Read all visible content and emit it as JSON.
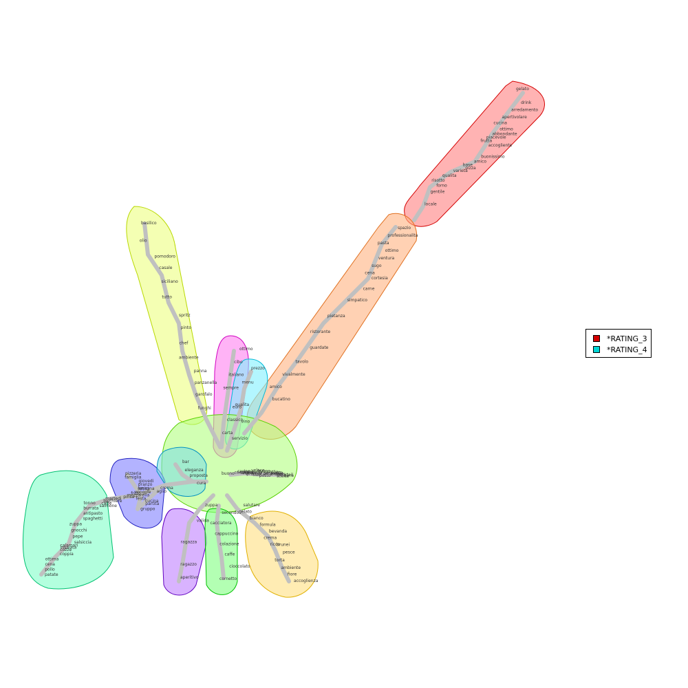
{
  "legend": {
    "items": [
      {
        "label": "*RATING_3",
        "color": "#d40000"
      },
      {
        "label": "*RATING_4",
        "color": "#00d6d6"
      }
    ]
  },
  "hub": {
    "label": "buono"
  },
  "edge_color": "#c0c0c0",
  "clusters": [
    {
      "name": "red",
      "fill": "#ff8080",
      "stroke": "#d40000",
      "words": [
        "gelato",
        "drink",
        "arredamento",
        "apertivolare",
        "cucina",
        "ottimo",
        "abbondante",
        "piacevole",
        "frutta",
        "accogliente",
        "buonissimo",
        "amico",
        "base",
        "pizza",
        "varieta",
        "qualita",
        "risotto",
        "forno",
        "gentile",
        "locale"
      ]
    },
    {
      "name": "orange",
      "fill": "#ffb380",
      "stroke": "#e07020",
      "words": [
        "spazio",
        "professionalita",
        "pasta",
        "ottimo",
        "ventura",
        "sugo",
        "cena",
        "cortesia",
        "carne",
        "simpatico",
        "pietanza",
        "ristorante",
        "guardate",
        "tavolo",
        "vivalmente",
        "amico",
        "bucatino"
      ]
    },
    {
      "name": "yellow",
      "fill": "#ecff80",
      "stroke": "#b8d800",
      "words": [
        "basilico",
        "olio",
        "pomodoro",
        "casale",
        "siciliano",
        "tutto",
        "spritz",
        "pinto",
        "chef",
        "ambiente",
        "panna",
        "panzanella",
        "garofalo",
        "funghi"
      ]
    },
    {
      "name": "magenta",
      "fill": "#ff80f0",
      "stroke": "#d000c0",
      "words": [
        "ottimo",
        "cibo",
        "italiano",
        "sempre",
        "euro",
        "classico",
        "carta"
      ]
    },
    {
      "name": "cyan",
      "fill": "#80f0ff",
      "stroke": "#00b8d6",
      "words": [
        "prezzo",
        "menu",
        "qualita",
        "vino",
        "servizio"
      ]
    },
    {
      "name": "green",
      "fill": "#b3ff80",
      "stroke": "#58d000",
      "words": [
        "scelta",
        "birra",
        "cocktail",
        "crudo",
        "personale",
        "piatto",
        "gentile",
        "buono",
        "veloce",
        "posto",
        "staff",
        "pranzo",
        "tavolo",
        "consigliato",
        "piacevole",
        "carino"
      ]
    },
    {
      "name": "mint",
      "fill": "#80ffc8",
      "stroke": "#00c070",
      "words": [
        "patate",
        "pollo",
        "cena",
        "ottima",
        "coppia",
        "cozze",
        "calamari",
        "insalata",
        "salsiccia",
        "pepe",
        "gnocchi",
        "zuppa",
        "spaghetti",
        "antipasto",
        "burrata",
        "tonno",
        "salmone",
        "caffe",
        "bicchiere",
        "martedi",
        "pinsa",
        "mozzarella",
        "fritto",
        "vongole",
        "lasagna",
        "aglio",
        "crema"
      ]
    },
    {
      "name": "blue",
      "fill": "#8080ff",
      "stroke": "#2020c0",
      "words": [
        "pizzeria",
        "famiglia",
        "giovedi",
        "pranzo",
        "amici",
        "festa",
        "partita",
        "gruppo",
        "cucina"
      ]
    },
    {
      "name": "teal",
      "fill": "#80e0e0",
      "stroke": "#0090c0",
      "words": [
        "bar",
        "eleganza",
        "proposta",
        "cura"
      ]
    },
    {
      "name": "violet",
      "fill": "#c080ff",
      "stroke": "#6000c0",
      "words": [
        "aperitivo",
        "ragazzo",
        "ragazza",
        "valida",
        "zuppa"
      ]
    },
    {
      "name": "lightgreen",
      "fill": "#80ff80",
      "stroke": "#00c000",
      "words": [
        "cornetto",
        "cioccolato",
        "caffe",
        "colazione",
        "cappuccino",
        "cacciatora",
        "secondo"
      ]
    },
    {
      "name": "light-yellow",
      "fill": "#ffe080",
      "stroke": "#e0b000",
      "words": [
        "accoglienza",
        "fiore",
        "ambiente",
        "torta",
        "pesce",
        "brunei",
        "ricco",
        "crema",
        "bevanda",
        "formula",
        "bianco",
        "gelato",
        "salutare"
      ]
    }
  ]
}
